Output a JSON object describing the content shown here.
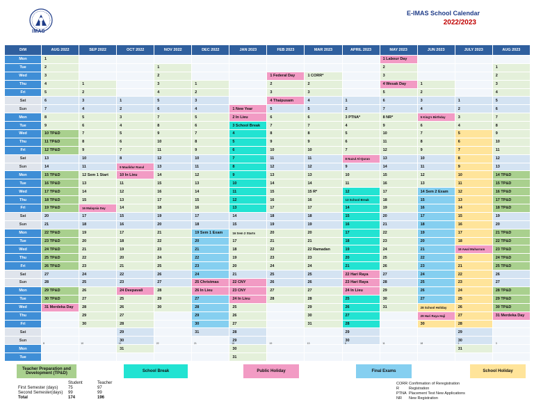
{
  "header": {
    "logo_text": "IMAS",
    "title": "E-IMAS School Calendar",
    "subtitle": "2022/2023"
  },
  "colors": {
    "header_blue": "#2f5f9e",
    "weekday_label": "#3f8ed6",
    "tp_and_d": "#a9d08e",
    "school_break": "#22e3d2",
    "public_holiday": "#f29bc4",
    "final_exams": "#85cff0",
    "school_holiday": "#ffe49a"
  },
  "calendar": {
    "corner_label": "D/M",
    "months": [
      "AUG 2022",
      "SEP 2022",
      "OCT 2022",
      "NOV 2022",
      "DEC 2022",
      "JAN 2023",
      "FEB 2023",
      "MAR 2023",
      "APRIL 2023",
      "MAY 2023",
      "JUN 2023",
      "JULY 2023",
      "AUG 2023"
    ],
    "rows": [
      {
        "day": "Mon",
        "cells": [
          "1",
          "",
          "",
          "",
          "",
          "",
          "",
          "",
          "",
          "1 Labour Day",
          "",
          "",
          ""
        ]
      },
      {
        "day": "Tue",
        "cells": [
          "2",
          "",
          "",
          "1",
          "",
          "",
          "",
          "",
          "",
          "2",
          "",
          "",
          "1"
        ]
      },
      {
        "day": "Wed",
        "cells": [
          "3",
          "",
          "",
          "2",
          "",
          "",
          "1 Federal Day",
          "1 CORR*",
          "",
          "3",
          "",
          "",
          "2"
        ]
      },
      {
        "day": "Thu",
        "cells": [
          "4",
          "1",
          "",
          "3",
          "1",
          "",
          "2",
          "2",
          "",
          "4 Wesak Day",
          "1",
          "",
          "3"
        ]
      },
      {
        "day": "Fri",
        "cells": [
          "5",
          "2",
          "",
          "4",
          "2",
          "",
          "3",
          "3",
          "",
          "5",
          "2",
          "",
          "4"
        ]
      },
      {
        "day": "Sat",
        "cells": [
          "6",
          "3",
          "1",
          "5",
          "3",
          "",
          "4 Thaipusam",
          "4",
          "1",
          "6",
          "3",
          "1",
          "5"
        ]
      },
      {
        "day": "Sun",
        "cells": [
          "7",
          "4",
          "2",
          "6",
          "4",
          "1 New Year",
          "5",
          "5",
          "2",
          "7",
          "4",
          "2",
          "6"
        ]
      },
      {
        "day": "Mon",
        "cells": [
          "8",
          "5",
          "3",
          "7",
          "5",
          "2 In Lieu",
          "6",
          "6",
          "3 PTNA*",
          "8 NR*",
          "5 King's Birthday",
          "3",
          "7"
        ]
      },
      {
        "day": "Tue",
        "cells": [
          "9",
          "6",
          "4",
          "8",
          "6",
          "3 School Break",
          "7",
          "7",
          "4",
          "9",
          "6",
          "4",
          "8"
        ]
      },
      {
        "day": "Wed",
        "cells": [
          "10 TP&D",
          "7",
          "5",
          "9",
          "7",
          "4",
          "8",
          "8",
          "5",
          "10",
          "7",
          "5",
          "9"
        ]
      },
      {
        "day": "Thu",
        "cells": [
          "11 TP&D",
          "8",
          "6",
          "10",
          "8",
          "5",
          "9",
          "9",
          "6",
          "11",
          "8",
          "6",
          "10"
        ]
      },
      {
        "day": "Fri",
        "cells": [
          "12 TP&D",
          "9",
          "7",
          "11",
          "9",
          "6",
          "10",
          "10",
          "7",
          "12",
          "9",
          "7",
          "11"
        ]
      },
      {
        "day": "Sat",
        "cells": [
          "13",
          "10",
          "8",
          "12",
          "10",
          "7",
          "11",
          "11",
          "8 Nuzul Al-Quran",
          "13",
          "10",
          "8",
          "12"
        ]
      },
      {
        "day": "Sun",
        "cells": [
          "14",
          "11",
          "9 Maulidur Rasul",
          "13",
          "11",
          "8",
          "12",
          "12",
          "9",
          "14",
          "11",
          "9",
          "13"
        ]
      },
      {
        "day": "Mon",
        "cells": [
          "15 TP&D",
          "12 Sem 1 Start",
          "10 In Lieu",
          "14",
          "12",
          "9",
          "13",
          "13",
          "10",
          "15",
          "12",
          "10",
          "14 TP&D"
        ]
      },
      {
        "day": "Tue",
        "cells": [
          "16 TP&D",
          "13",
          "11",
          "15",
          "13",
          "10",
          "14",
          "14",
          "11",
          "16",
          "13",
          "11",
          "15 TP&D"
        ]
      },
      {
        "day": "Wed",
        "cells": [
          "17 TP&D",
          "14",
          "12",
          "16",
          "14",
          "11",
          "15",
          "15 R*",
          "12",
          "17",
          "14 Sem 2 Exam",
          "12",
          "16 TP&D"
        ]
      },
      {
        "day": "Thu",
        "cells": [
          "18 TP&D",
          "15",
          "13",
          "17",
          "15",
          "12",
          "16",
          "16",
          "13 School Break",
          "18",
          "15",
          "13",
          "17 TP&D"
        ]
      },
      {
        "day": "Fri",
        "cells": [
          "19 TP&D",
          "16 Malaysia Day",
          "14",
          "18",
          "16",
          "13",
          "17",
          "17",
          "14",
          "19",
          "16",
          "14",
          "18 TP&D"
        ]
      },
      {
        "day": "Sat",
        "cells": [
          "20",
          "17",
          "15",
          "19",
          "17",
          "14",
          "18",
          "18",
          "15",
          "20",
          "17",
          "15",
          "19"
        ]
      },
      {
        "day": "Sun",
        "cells": [
          "21",
          "18",
          "16",
          "20",
          "18",
          "15",
          "19",
          "19",
          "16",
          "21",
          "18",
          "16",
          "20"
        ]
      },
      {
        "day": "Mon",
        "cells": [
          "22 TP&D",
          "19",
          "17",
          "21",
          "19 Sem 1 Exam",
          "16 Sem 2 Starts",
          "20",
          "20",
          "17",
          "22",
          "19",
          "17",
          "21 TP&D"
        ]
      },
      {
        "day": "Tue",
        "cells": [
          "23 TP&D",
          "20",
          "18",
          "22",
          "20",
          "17",
          "21",
          "21",
          "18",
          "23",
          "20",
          "18",
          "22 TP&D"
        ]
      },
      {
        "day": "Wed",
        "cells": [
          "24 TP&D",
          "21",
          "19",
          "23",
          "21",
          "18",
          "22",
          "22 Ramadan",
          "19",
          "24",
          "21",
          "19 Awal Muharram",
          "23 TP&D"
        ]
      },
      {
        "day": "Thu",
        "cells": [
          "25 TP&D",
          "22",
          "20",
          "24",
          "22",
          "19",
          "23",
          "23",
          "20",
          "25",
          "22",
          "20",
          "24 TP&D"
        ]
      },
      {
        "day": "Fri",
        "cells": [
          "26 TP&D",
          "23",
          "21",
          "25",
          "23",
          "20",
          "24",
          "24",
          "21",
          "26",
          "23",
          "21",
          "25 TP&D"
        ]
      },
      {
        "day": "Sat",
        "cells": [
          "27",
          "24",
          "22",
          "26",
          "24",
          "21",
          "25",
          "25",
          "22 Hari Raya",
          "27",
          "24",
          "22",
          "26"
        ]
      },
      {
        "day": "Sun",
        "cells": [
          "28",
          "25",
          "23",
          "27",
          "25 Christmas",
          "22 CNY",
          "26",
          "26",
          "23 Hari Raya",
          "28",
          "25",
          "23",
          "27"
        ]
      },
      {
        "day": "Mon",
        "cells": [
          "29 TP&D",
          "26",
          "24 Deepavali",
          "28",
          "26 In Lieu",
          "23 CNY",
          "27",
          "27",
          "24 In Lieu",
          "29",
          "26",
          "24",
          "28 TP&D"
        ]
      },
      {
        "day": "Tue",
        "cells": [
          "30 TP&D",
          "27",
          "25",
          "29",
          "27",
          "24 In Lieu",
          "28",
          "28",
          "25",
          "30",
          "27",
          "25",
          "29 TP&D"
        ]
      },
      {
        "day": "Wed",
        "cells": [
          "31 Merdeka Day",
          "28",
          "26",
          "30",
          "28",
          "25",
          "",
          "29",
          "26",
          "31",
          "28 School Holiday",
          "26",
          "30 TP&D"
        ]
      },
      {
        "day": "Thu",
        "cells": [
          "",
          "29",
          "27",
          "",
          "29",
          "26",
          "",
          "30",
          "27",
          "",
          "29 Hari Raya Haji",
          "27",
          "31 Merdeka Day"
        ]
      },
      {
        "day": "Fri",
        "cells": [
          "",
          "30",
          "28",
          "",
          "30",
          "27",
          "",
          "31",
          "28",
          "",
          "30",
          "28",
          ""
        ]
      },
      {
        "day": "Sat",
        "cells": [
          "",
          "",
          "29",
          "",
          "31",
          "28",
          "",
          "",
          "29",
          "",
          "",
          "29",
          ""
        ]
      },
      {
        "day": "Sun",
        "cells": [
          "",
          "",
          "30",
          "",
          "",
          "29",
          "",
          "",
          "30",
          "",
          "",
          "30",
          ""
        ]
      },
      {
        "day": "Mon",
        "cells": [
          "",
          "",
          "31",
          "",
          "",
          "30",
          "",
          "",
          "",
          "",
          "",
          "31",
          ""
        ]
      },
      {
        "day": "Tue",
        "cells": [
          "",
          "",
          "",
          "",
          "",
          "31",
          "",
          "",
          "",
          "",
          "",
          "",
          ""
        ]
      }
    ],
    "footnotes": [
      "8",
      "10",
      "19",
      "22",
      "21",
      "18",
      "19",
      "13",
      "8",
      "11",
      "18",
      "1",
      "3"
    ]
  },
  "legend": {
    "tpd": "Teacher Preparation and Development (TP&D)",
    "school_break": "School Break",
    "public_holiday": "Public Holiday",
    "final_exams": "Final Exams",
    "school_holiday": "School Holiday"
  },
  "stats": {
    "col_student": "Student",
    "col_teacher": "Teacher",
    "rows": [
      {
        "label": "First Semester (days)",
        "student": "75",
        "teacher": "97"
      },
      {
        "label": "Second Semester(days)",
        "student": "99",
        "teacher": "99"
      },
      {
        "label": "Total",
        "student": "174",
        "teacher": "196"
      }
    ]
  },
  "abbreviations": [
    {
      "key": "CORR",
      "value": "Confirmation of Reregistration"
    },
    {
      "key": "R",
      "value": "Registration"
    },
    {
      "key": "PTNA",
      "value": "Placement Test New Applications"
    },
    {
      "key": "NR",
      "value": "New Registration"
    }
  ]
}
